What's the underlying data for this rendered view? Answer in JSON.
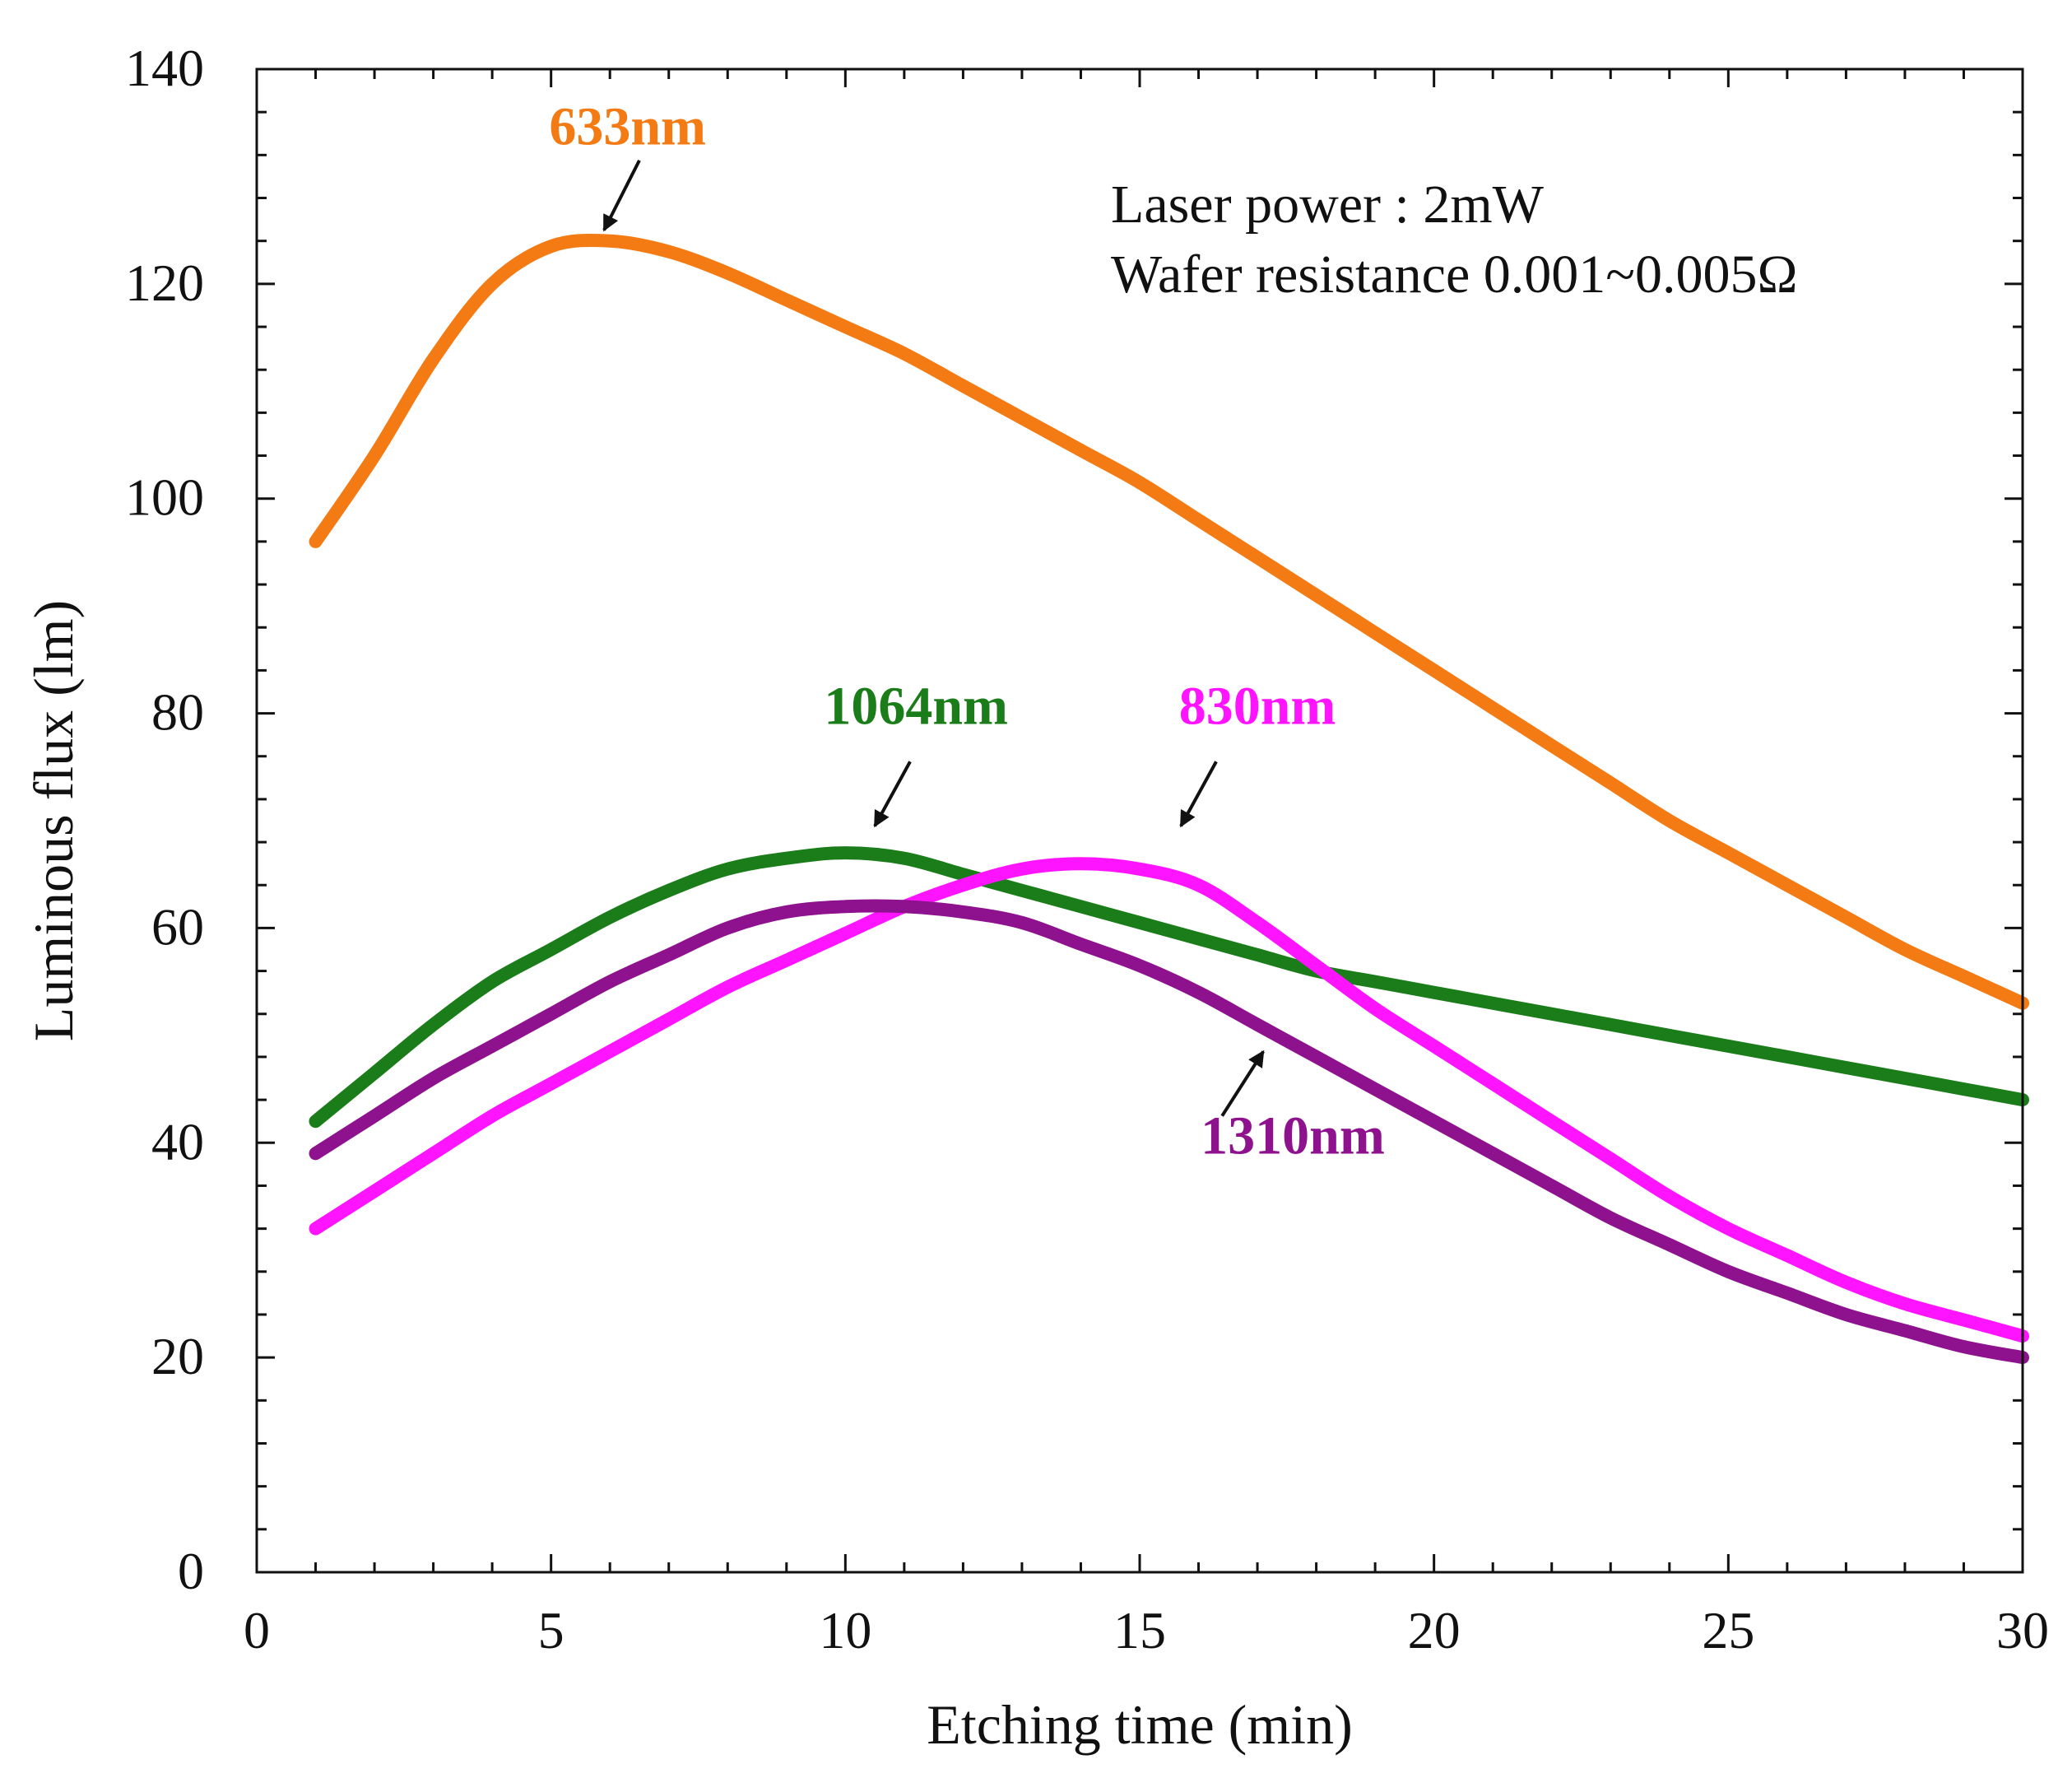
{
  "chart_data": {
    "type": "line",
    "title": "",
    "xlabel": "Etching time (min)",
    "ylabel": "Luminous flux (lm)",
    "xlim": [
      0,
      30
    ],
    "ylim": [
      0,
      140
    ],
    "xticks": [
      0,
      5,
      10,
      15,
      20,
      25,
      30
    ],
    "yticks": [
      0,
      20,
      40,
      60,
      80,
      100,
      120,
      140
    ],
    "x_minor_step": 1,
    "y_minor_step": 4,
    "grid": false,
    "annotations": [
      "Laser power : 2mW",
      "Wafer resistance 0.001~0.005Ω"
    ],
    "series": [
      {
        "name": "633nm",
        "color": "#f47a13",
        "x": [
          1,
          2,
          3,
          4,
          5,
          6,
          7,
          8,
          9,
          10,
          11,
          12,
          13,
          14,
          15,
          16,
          17,
          18,
          19,
          20,
          21,
          22,
          23,
          24,
          25,
          26,
          27,
          28,
          29,
          30
        ],
        "y": [
          96,
          104,
          113,
          120,
          123.5,
          124,
          123,
          121,
          118.5,
          116,
          113.5,
          110.5,
          107.5,
          104.5,
          101.5,
          98,
          94.5,
          91,
          87.5,
          84,
          80.5,
          77,
          73.5,
          70,
          67,
          64,
          61,
          58,
          55.5,
          53
        ],
        "label_pos": [
          6.3,
          133
        ],
        "arrow_from": [
          6.5,
          131.5
        ],
        "arrow_to": [
          5.9,
          125
        ]
      },
      {
        "name": "1064nm",
        "color": "#1a7d19",
        "x": [
          1,
          2,
          3,
          4,
          5,
          6,
          7,
          8,
          9,
          10,
          11,
          12,
          13,
          14,
          15,
          16,
          17,
          18,
          19,
          20,
          21,
          22,
          23,
          24,
          25,
          26,
          27,
          28,
          29,
          30
        ],
        "y": [
          42,
          46.5,
          51,
          55,
          58,
          61,
          63.5,
          65.5,
          66.5,
          67,
          66.5,
          65,
          63.5,
          62,
          60.5,
          59,
          57.5,
          56,
          55,
          54,
          53,
          52,
          51,
          50,
          49,
          48,
          47,
          46,
          45,
          44
        ],
        "label_pos": [
          11.2,
          79
        ],
        "arrow_from": [
          11.1,
          75.5
        ],
        "arrow_to": [
          10.5,
          69.5
        ]
      },
      {
        "name": "830nm",
        "color": "#ff14ff",
        "x": [
          1,
          2,
          3,
          4,
          5,
          6,
          7,
          8,
          9,
          10,
          11,
          12,
          13,
          14,
          15,
          16,
          17,
          18,
          19,
          20,
          21,
          22,
          23,
          24,
          25,
          26,
          27,
          28,
          29,
          30
        ],
        "y": [
          32,
          35.5,
          39,
          42.5,
          45.5,
          48.5,
          51.5,
          54.5,
          57,
          59.5,
          62,
          64,
          65.5,
          66,
          65.5,
          64,
          60.5,
          56.5,
          52.5,
          49,
          45.5,
          42,
          38.5,
          35,
          32,
          29.5,
          27,
          25,
          23.5,
          22
        ],
        "label_pos": [
          17.0,
          79
        ],
        "arrow_from": [
          16.3,
          75.5
        ],
        "arrow_to": [
          15.7,
          69.5
        ]
      },
      {
        "name": "1310nm",
        "color": "#8e118e",
        "x": [
          1,
          2,
          3,
          4,
          5,
          6,
          7,
          8,
          9,
          10,
          11,
          12,
          13,
          14,
          15,
          16,
          17,
          18,
          19,
          20,
          21,
          22,
          23,
          24,
          25,
          26,
          27,
          28,
          29,
          30
        ],
        "y": [
          39,
          42.5,
          46,
          49,
          52,
          55,
          57.5,
          60,
          61.5,
          62,
          62,
          61.5,
          60.5,
          58.5,
          56.5,
          54,
          51,
          48,
          45,
          42,
          39,
          36,
          33,
          30.5,
          28,
          26,
          24,
          22.5,
          21,
          20
        ],
        "label_pos": [
          17.6,
          39
        ],
        "arrow_from": [
          16.4,
          42.5
        ],
        "arrow_to": [
          17.1,
          48.5
        ]
      }
    ]
  }
}
